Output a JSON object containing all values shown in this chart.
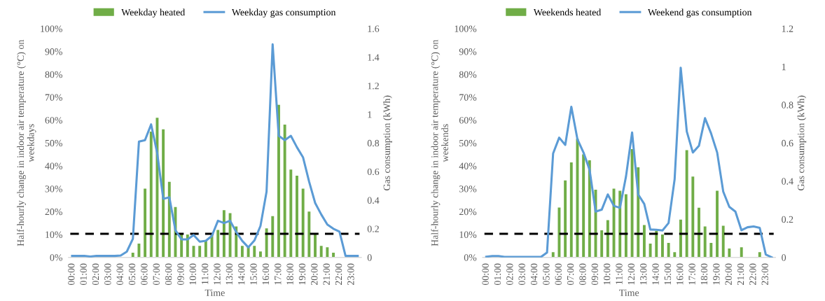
{
  "chart_data": [
    {
      "type": "bar",
      "categories": [
        "00:00",
        null,
        "01:00",
        null,
        "02:00",
        null,
        "03:00",
        null,
        "04:00",
        null,
        "05:00",
        null,
        "06:00",
        null,
        "07:00",
        null,
        "08:00",
        null,
        "09:00",
        null,
        "10:00",
        null,
        "11:00",
        null,
        "12:00",
        null,
        "13:00",
        null,
        "14:00",
        null,
        "15:00",
        null,
        "16:00",
        null,
        "17:00",
        null,
        "18:00",
        null,
        "19:00",
        null,
        "20:00",
        null,
        "21:00",
        null,
        "22:00",
        null,
        "23:00",
        null
      ],
      "xlabel": "Time",
      "ylabel": "Half-hourly change in indoor air temperature (°C) on\nweekdays",
      "y2label": "Gas consumption (kWh)",
      "series": [
        {
          "name": "Weekday heated",
          "color": "#70ad47",
          "values": [
            0,
            0,
            0,
            0,
            0,
            0,
            0,
            0,
            0,
            0,
            2,
            6,
            30,
            55,
            61,
            56,
            33,
            22,
            10,
            10,
            5,
            5,
            7.5,
            10,
            12,
            20.6,
            19.3,
            13.5,
            5,
            5,
            5,
            2.6,
            12.7,
            18,
            66.7,
            58,
            38.4,
            35.7,
            30,
            20,
            10.4,
            5,
            4.4,
            2,
            0,
            0,
            0,
            0
          ]
        },
        {
          "name": "Weekday gas consumption",
          "type": "line",
          "axis": "y2",
          "color": "#5b9bd5",
          "values": [
            0.01,
            0.01,
            0.01,
            0.005,
            0.01,
            0.01,
            0.01,
            0.01,
            0.013,
            0.04,
            0.13,
            0.81,
            0.82,
            0.93,
            0.73,
            0.41,
            0.42,
            0.19,
            0.126,
            0.126,
            0.156,
            0.11,
            0.116,
            0.15,
            0.256,
            0.24,
            0.256,
            0.178,
            0.115,
            0.07,
            0.118,
            0.22,
            0.46,
            1.49,
            0.85,
            0.82,
            0.85,
            0.77,
            0.7,
            0.53,
            0.38,
            0.3,
            0.23,
            0.2,
            0.18,
            0.01,
            0.01,
            0.01
          ]
        }
      ],
      "ylim": [
        0,
        100
      ],
      "yticks": [
        {
          "value": 0,
          "label": "0%"
        },
        {
          "value": 10,
          "label": "10%"
        },
        {
          "value": 20,
          "label": "20%"
        },
        {
          "value": 30,
          "label": "30%"
        },
        {
          "value": 40,
          "label": "40%"
        },
        {
          "value": 50,
          "label": "50%"
        },
        {
          "value": 60,
          "label": "60%"
        },
        {
          "value": 70,
          "label": "70%"
        },
        {
          "value": 80,
          "label": "80%"
        },
        {
          "value": 90,
          "label": "90%"
        },
        {
          "value": 100,
          "label": "100%"
        }
      ],
      "y2lim": [
        0,
        1.6
      ],
      "y2ticks": [
        0,
        0.2,
        0.4,
        0.6,
        0.8,
        1,
        1.2,
        1.4,
        1.6
      ],
      "ref_lines": [
        {
          "axis": "y",
          "value": 10.3,
          "color": "#000000",
          "line_style": "dashed"
        }
      ],
      "legend": "top",
      "grid": false
    },
    {
      "type": "bar",
      "categories": [
        "00:00",
        null,
        "01:00",
        null,
        "02:00",
        null,
        "03:00",
        null,
        "04:00",
        null,
        "05:00",
        null,
        "06:00",
        null,
        "07:00",
        null,
        "08:00",
        null,
        "09:00",
        null,
        "10:00",
        null,
        "11:00",
        null,
        "12:00",
        null,
        "13:00",
        null,
        "14:00",
        null,
        "15:00",
        null,
        "16:00",
        null,
        "17:00",
        null,
        "18:00",
        null,
        "19:00",
        null,
        "20:00",
        null,
        "21:00",
        null,
        "22:00",
        null,
        "23:00",
        null
      ],
      "xlabel": "Time",
      "ylabel": "Half-hourly change in indoor air temperature (°C) on\nweekends",
      "y2label": "Gas consumption (kWh)",
      "series": [
        {
          "name": "Weekends heated",
          "color": "#70ad47",
          "values": [
            0,
            0,
            0,
            0,
            0,
            0,
            0,
            0,
            0,
            0,
            0,
            2.3,
            21.8,
            33.6,
            41.5,
            51.8,
            45,
            42.4,
            29.6,
            11.8,
            16.3,
            30,
            29.1,
            27.6,
            47.3,
            39.4,
            14.1,
            6,
            11.6,
            10,
            6.3,
            2.3,
            16.5,
            46.9,
            35.3,
            21.7,
            13.5,
            6.3,
            29.1,
            13.8,
            3.9,
            0,
            4.4,
            0,
            0,
            2.3,
            0,
            0
          ]
        },
        {
          "name": "Weekend gas consumption",
          "type": "line",
          "axis": "y2",
          "color": "#5b9bd5",
          "values": [
            0.003,
            0.007,
            0.007,
            0.002,
            0.002,
            0.002,
            0.002,
            0.002,
            0.002,
            0.002,
            0.025,
            0.545,
            0.628,
            0.59,
            0.79,
            0.62,
            0.55,
            0.46,
            0.24,
            0.25,
            0.33,
            0.27,
            0.26,
            0.425,
            0.655,
            0.33,
            0.28,
            0.146,
            0.145,
            0.141,
            0.18,
            0.41,
            0.995,
            0.66,
            0.55,
            0.585,
            0.73,
            0.65,
            0.55,
            0.345,
            0.265,
            0.24,
            0.142,
            0.158,
            0.162,
            0.155,
            0.015,
            0
          ]
        }
      ],
      "ylim": [
        0,
        100
      ],
      "yticks": [
        {
          "value": 0,
          "label": "0%"
        },
        {
          "value": 10,
          "label": "10%"
        },
        {
          "value": 20,
          "label": "20%"
        },
        {
          "value": 30,
          "label": "30%"
        },
        {
          "value": 40,
          "label": "40%"
        },
        {
          "value": 50,
          "label": "50%"
        },
        {
          "value": 60,
          "label": "60%"
        },
        {
          "value": 70,
          "label": "70%"
        },
        {
          "value": 80,
          "label": "80%"
        },
        {
          "value": 90,
          "label": "90%"
        },
        {
          "value": 100,
          "label": "100%"
        }
      ],
      "y2lim": [
        0,
        1.2
      ],
      "y2ticks": [
        0,
        0.2,
        0.4,
        0.6,
        0.8,
        1,
        1.2
      ],
      "ref_lines": [
        {
          "axis": "y",
          "value": 10.3,
          "color": "#000000",
          "line_style": "dashed"
        }
      ],
      "legend": "top",
      "grid": false
    }
  ]
}
